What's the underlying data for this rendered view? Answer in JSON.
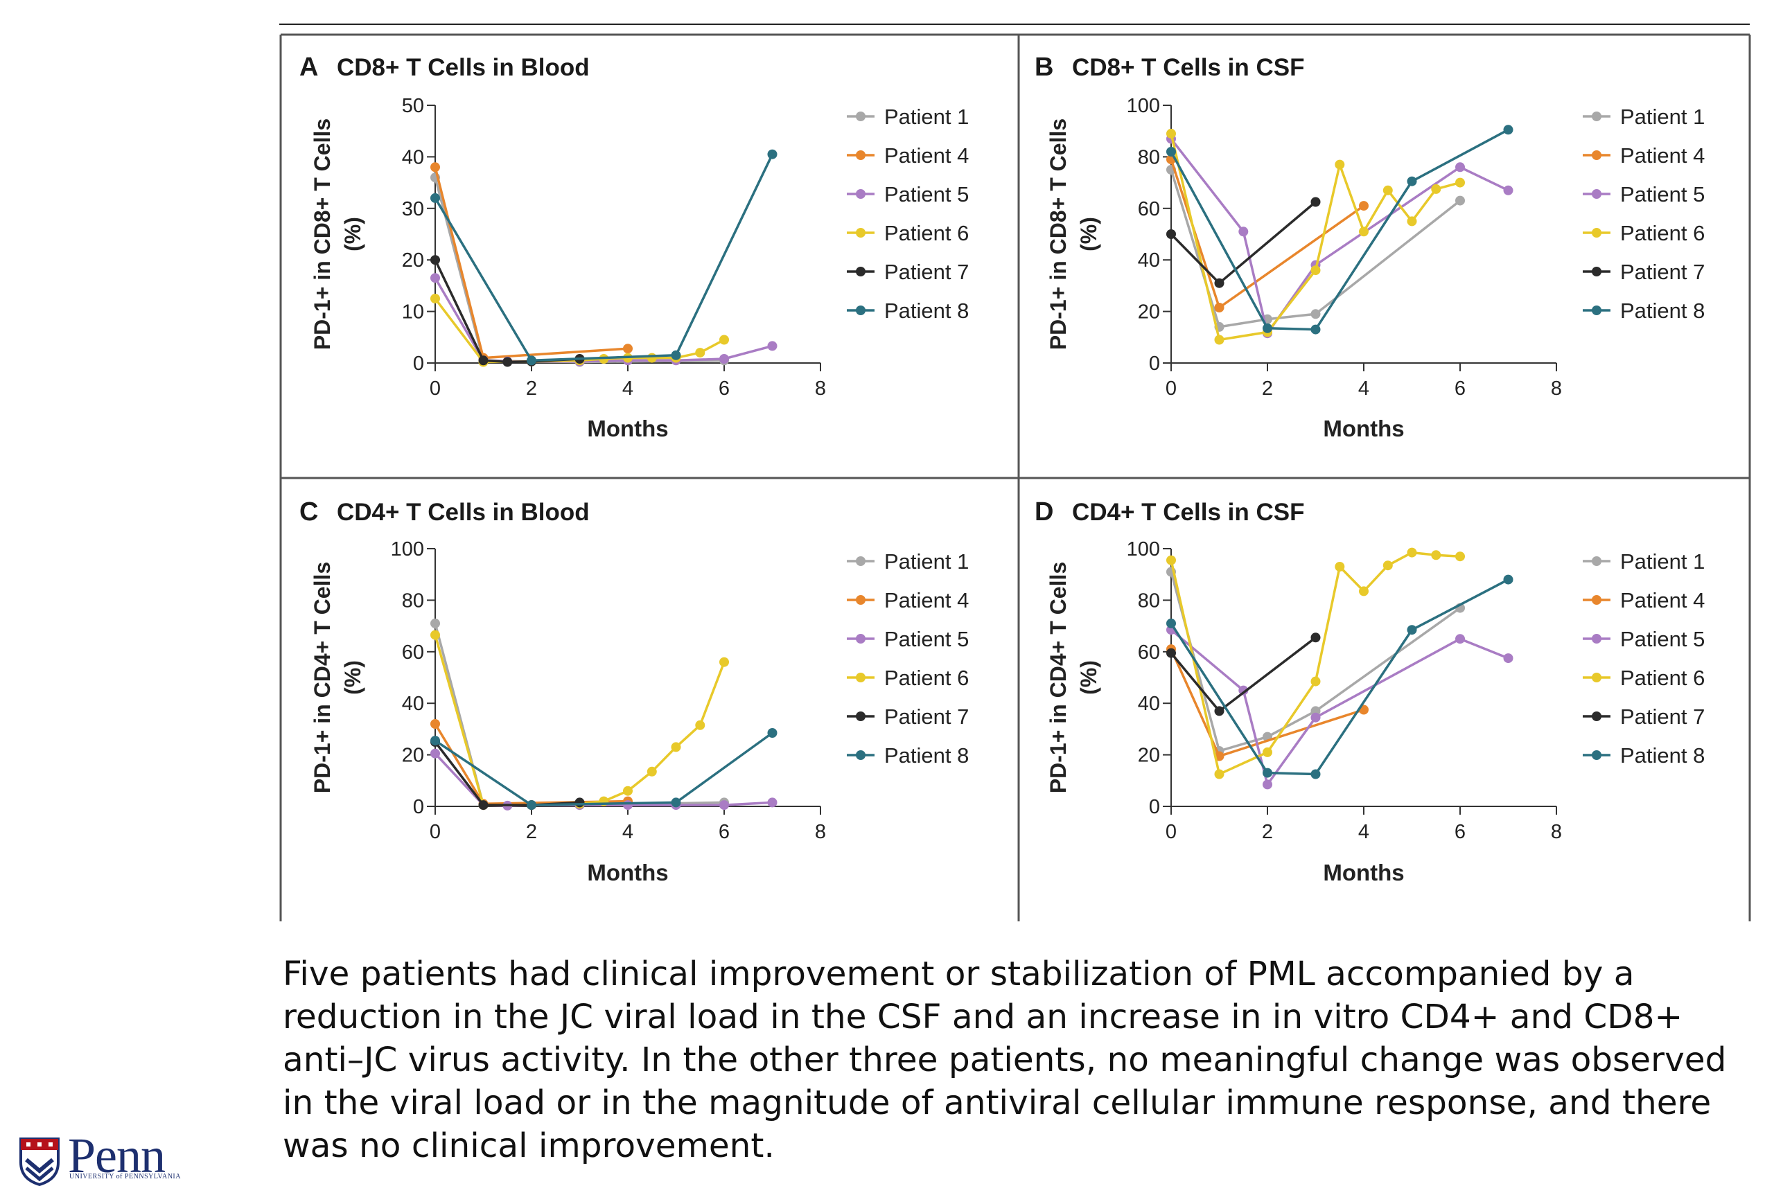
{
  "caption": "Five patients had clinical improvement or stabilization of PML accompanied by a reduction in the JC viral load in the CSF and an increase in in vitro CD4+ and CD8+ anti–JC virus activity. In the other three patients, no meaningful change was observed in the viral load or in the magnitude of antiviral cellular immune response, and there was no clinical improvement.",
  "logo": {
    "wordmark": "Penn",
    "subtitle": "UNIVERSITY of PENNSYLVANIA"
  },
  "colors": {
    "Patient 1": "#a8a8a8",
    "Patient 4": "#e8862c",
    "Patient 5": "#a97cc4",
    "Patient 6": "#e8c92a",
    "Patient 7": "#2b2b2b",
    "Patient 8": "#2b7080"
  },
  "chart_data": [
    {
      "id": "A",
      "type": "line",
      "panel_letter": "A",
      "title": "CD8+ T Cells in Blood",
      "xlabel": "Months",
      "ylabel_line1": "PD-1+ in CD8+ T Cells",
      "ylabel_line2": "(%)",
      "xlim": [
        0,
        8
      ],
      "ylim": [
        0,
        50
      ],
      "xticks": [
        0,
        2,
        4,
        6,
        8
      ],
      "yticks": [
        0,
        10,
        20,
        30,
        40,
        50
      ],
      "legend_position": "right",
      "series": [
        {
          "name": "Patient 1",
          "points": [
            [
              0,
              36
            ],
            [
              1,
              0.5
            ],
            [
              2,
              0.3
            ],
            [
              3,
              0.2
            ],
            [
              6,
              0.5
            ]
          ]
        },
        {
          "name": "Patient 4",
          "points": [
            [
              0,
              38
            ],
            [
              1,
              1
            ],
            [
              4,
              2.8
            ]
          ]
        },
        {
          "name": "Patient 5",
          "points": [
            [
              0,
              16.5
            ],
            [
              1,
              0.5
            ],
            [
              1.5,
              0.3
            ],
            [
              2,
              0.3
            ],
            [
              3,
              0.3
            ],
            [
              4,
              0.5
            ],
            [
              5,
              0.5
            ],
            [
              6,
              0.8
            ],
            [
              7,
              3.3
            ]
          ]
        },
        {
          "name": "Patient 6",
          "points": [
            [
              0,
              12.5
            ],
            [
              1,
              0.2
            ],
            [
              2,
              0.3
            ],
            [
              3,
              0.5
            ],
            [
              3.5,
              0.8
            ],
            [
              4,
              1
            ],
            [
              4.5,
              1
            ],
            [
              5,
              1
            ],
            [
              5.5,
              2
            ],
            [
              6,
              4.5
            ]
          ]
        },
        {
          "name": "Patient 7",
          "points": [
            [
              0,
              20
            ],
            [
              1,
              0.5
            ],
            [
              1.5,
              0.2
            ],
            [
              2,
              0.3
            ],
            [
              3,
              0.8
            ]
          ]
        },
        {
          "name": "Patient 8",
          "points": [
            [
              0,
              32
            ],
            [
              2,
              0.5
            ],
            [
              5,
              1.5
            ],
            [
              7,
              40.5
            ]
          ]
        }
      ]
    },
    {
      "id": "B",
      "type": "line",
      "panel_letter": "B",
      "title": "CD8+ T Cells in CSF",
      "xlabel": "Months",
      "ylabel_line1": "PD-1+ in CD8+ T Cells",
      "ylabel_line2": "(%)",
      "xlim": [
        0,
        8
      ],
      "ylim": [
        0,
        100
      ],
      "xticks": [
        0,
        2,
        4,
        6,
        8
      ],
      "yticks": [
        0,
        20,
        40,
        60,
        80,
        100
      ],
      "legend_position": "right",
      "series": [
        {
          "name": "Patient 1",
          "points": [
            [
              0,
              75
            ],
            [
              1,
              14
            ],
            [
              2,
              17
            ],
            [
              3,
              19
            ],
            [
              6,
              63
            ]
          ]
        },
        {
          "name": "Patient 4",
          "points": [
            [
              0,
              79
            ],
            [
              1,
              21.5
            ],
            [
              4,
              61
            ]
          ]
        },
        {
          "name": "Patient 5",
          "points": [
            [
              0,
              87
            ],
            [
              1.5,
              51
            ],
            [
              2,
              11.5
            ],
            [
              3,
              38
            ],
            [
              6,
              76
            ],
            [
              7,
              67
            ]
          ]
        },
        {
          "name": "Patient 6",
          "points": [
            [
              0,
              89
            ],
            [
              1,
              9
            ],
            [
              2,
              12
            ],
            [
              3,
              36
            ],
            [
              3.5,
              77
            ],
            [
              4,
              51
            ],
            [
              4.5,
              67
            ],
            [
              5,
              55
            ],
            [
              5.5,
              67.5
            ],
            [
              6,
              70
            ]
          ]
        },
        {
          "name": "Patient 7",
          "points": [
            [
              0,
              50
            ],
            [
              1,
              31
            ],
            [
              3,
              62.5
            ]
          ]
        },
        {
          "name": "Patient 8",
          "points": [
            [
              0,
              82
            ],
            [
              2,
              13.5
            ],
            [
              3,
              13
            ],
            [
              5,
              70.5
            ],
            [
              7,
              90.5
            ]
          ]
        }
      ]
    },
    {
      "id": "C",
      "type": "line",
      "panel_letter": "C",
      "title": "CD4+ T Cells in Blood",
      "xlabel": "Months",
      "ylabel_line1": "PD-1+ in CD4+ T Cells",
      "ylabel_line2": "(%)",
      "xlim": [
        0,
        8
      ],
      "ylim": [
        0,
        100
      ],
      "xticks": [
        0,
        2,
        4,
        6,
        8
      ],
      "yticks": [
        0,
        20,
        40,
        60,
        80,
        100
      ],
      "legend_position": "right",
      "series": [
        {
          "name": "Patient 1",
          "points": [
            [
              0,
              71
            ],
            [
              1,
              0.5
            ],
            [
              2,
              0.5
            ],
            [
              3,
              0.5
            ],
            [
              6,
              1.5
            ]
          ]
        },
        {
          "name": "Patient 4",
          "points": [
            [
              0,
              32
            ],
            [
              1,
              1
            ],
            [
              4,
              2
            ]
          ]
        },
        {
          "name": "Patient 5",
          "points": [
            [
              0,
              20.5
            ],
            [
              1,
              0.5
            ],
            [
              1.5,
              0.3
            ],
            [
              2,
              0.5
            ],
            [
              3,
              0.5
            ],
            [
              4,
              0.5
            ],
            [
              5,
              0.5
            ],
            [
              6,
              0.5
            ],
            [
              7,
              1.5
            ]
          ]
        },
        {
          "name": "Patient 6",
          "points": [
            [
              0,
              66.5
            ],
            [
              1,
              0.5
            ],
            [
              2,
              0.5
            ],
            [
              3,
              1
            ],
            [
              3.5,
              2
            ],
            [
              4,
              6
            ],
            [
              4.5,
              13.5
            ],
            [
              5,
              23
            ],
            [
              5.5,
              31.5
            ],
            [
              6,
              56
            ]
          ]
        },
        {
          "name": "Patient 7",
          "points": [
            [
              0,
              25
            ],
            [
              1,
              0.5
            ],
            [
              2,
              0.5
            ],
            [
              3,
              1.5
            ]
          ]
        },
        {
          "name": "Patient 8",
          "points": [
            [
              0,
              25.5
            ],
            [
              2,
              0.5
            ],
            [
              5,
              1.5
            ],
            [
              7,
              28.5
            ]
          ]
        }
      ]
    },
    {
      "id": "D",
      "type": "line",
      "panel_letter": "D",
      "title": "CD4+ T Cells in CSF",
      "xlabel": "Months",
      "ylabel_line1": "PD-1+ in CD4+ T Cells",
      "ylabel_line2": "(%)",
      "xlim": [
        0,
        8
      ],
      "ylim": [
        0,
        100
      ],
      "xticks": [
        0,
        2,
        4,
        6,
        8
      ],
      "yticks": [
        0,
        20,
        40,
        60,
        80,
        100
      ],
      "legend_position": "right",
      "series": [
        {
          "name": "Patient 1",
          "points": [
            [
              0,
              91
            ],
            [
              1,
              21.5
            ],
            [
              2,
              27
            ],
            [
              3,
              37
            ],
            [
              6,
              77
            ]
          ]
        },
        {
          "name": "Patient 4",
          "points": [
            [
              0,
              61
            ],
            [
              1,
              19.5
            ],
            [
              4,
              37.5
            ]
          ]
        },
        {
          "name": "Patient 5",
          "points": [
            [
              0,
              68.5
            ],
            [
              1.5,
              45
            ],
            [
              2,
              8.5
            ],
            [
              3,
              34.5
            ],
            [
              6,
              65
            ],
            [
              7,
              57.5
            ]
          ]
        },
        {
          "name": "Patient 6",
          "points": [
            [
              0,
              95.5
            ],
            [
              1,
              12.5
            ],
            [
              2,
              21
            ],
            [
              3,
              48.5
            ],
            [
              3.5,
              93
            ],
            [
              4,
              83.5
            ],
            [
              4.5,
              93.5
            ],
            [
              5,
              98.5
            ],
            [
              5.5,
              97.5
            ],
            [
              6,
              97
            ]
          ]
        },
        {
          "name": "Patient 7",
          "points": [
            [
              0,
              59.5
            ],
            [
              1,
              37
            ],
            [
              3,
              65.5
            ]
          ]
        },
        {
          "name": "Patient 8",
          "points": [
            [
              0,
              71
            ],
            [
              2,
              13
            ],
            [
              3,
              12.5
            ],
            [
              5,
              68.5
            ],
            [
              7,
              88
            ]
          ]
        }
      ]
    }
  ]
}
